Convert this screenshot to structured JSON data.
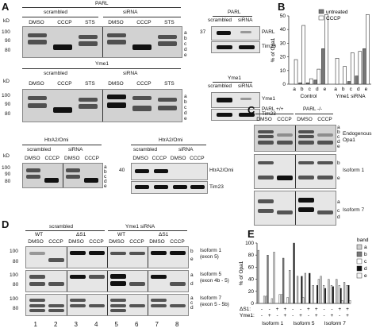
{
  "panels": {
    "a": "A",
    "b": "B",
    "c": "C",
    "d": "D",
    "e": "E"
  },
  "mw": {
    "kd": "kD",
    "m100": "100",
    "m90": "90",
    "m80": "80",
    "m40": "40",
    "m37": "37"
  },
  "treat": {
    "dmso": "DMSO",
    "cccp": "CCCP",
    "sts": "STS",
    "scrambled": "scrambled",
    "sirna": "siRNA"
  },
  "bands": {
    "a": "a",
    "b": "b",
    "c": "c",
    "d": "d",
    "e": "e"
  },
  "panelA": {
    "parl_title": "PARL",
    "yme1_title": "Yme1",
    "htra2_title": "HtrA2/Omi",
    "parl_blot": "PARL",
    "tim23": "Tim23",
    "yme1_blot": "Yme1",
    "htra2_blot": "HtrA2/Omi"
  },
  "panelB": {
    "ylabel": "% of Opa1",
    "legend_untreated": "untreated",
    "legend_cccp": "CCCP",
    "group_control": "Control",
    "group_yme1": "Yme1 siRNA",
    "color_untreated": "#777777",
    "color_cccp": "#ffffff"
  },
  "panelC": {
    "parl_wt": "PARL +/+",
    "parl_ko": "PARL -/-",
    "endogenous": "Endogenous",
    "opa1": "Opa1",
    "isoform1": "Isoform 1",
    "isoform7": "Isoform 7"
  },
  "panelD": {
    "scrambled": "scrambled",
    "yme1_sirna": "Yme1 siRNA",
    "wt": "WT",
    "ds1": "ΔS1",
    "iso1": "Isoform 1",
    "iso1_exon": "(exon 5)",
    "iso5": "Isoform 5",
    "iso5_exon": "(exon 4b - 5)",
    "iso7": "Isoform 7",
    "iso7_exon": "(exon 5 - 5b)",
    "lanes": [
      "1",
      "2",
      "3",
      "4",
      "5",
      "6",
      "7",
      "8"
    ]
  },
  "panelE": {
    "ylabel": "% of Opa1",
    "legend_title": "band",
    "ds1": "ΔS1:",
    "yme1": "Yme1:",
    "iso1": "Isoform 1",
    "iso5": "Isoform 5",
    "iso7": "Isoform 7",
    "plus": "+",
    "minus": "-"
  },
  "chart_data": [
    {
      "type": "bar",
      "ylabel": "% of Opa1",
      "ylim": [
        0,
        50
      ],
      "yticks": [
        0,
        10,
        20,
        30,
        40,
        50
      ],
      "categories": [
        "a",
        "b",
        "c",
        "d",
        "e",
        "a",
        "b",
        "c",
        "d",
        "e"
      ],
      "groups": [
        "Control",
        "Yme1 siRNA"
      ],
      "series": [
        {
          "name": "untreated",
          "values": [
            0,
            1,
            1,
            3,
            26,
            0,
            0,
            2,
            6,
            26
          ]
        },
        {
          "name": "CCCP",
          "values": [
            18,
            43,
            4,
            11,
            51,
            19,
            13,
            23,
            24,
            51
          ]
        }
      ],
      "legend": "top-right"
    },
    {
      "type": "bar",
      "ylabel": "% of Opa1",
      "ylim": [
        0,
        100
      ],
      "yticks": [
        0,
        20,
        40,
        60,
        80,
        100
      ],
      "categories": [
        "Isoform 1",
        "Isoform 5",
        "Isoform 7"
      ],
      "series": [
        {
          "name": "a",
          "values": [
            [
              88,
              12,
              85,
              15
            ],
            [
              55,
              45,
              50,
              30
            ],
            [
              45,
              40,
              40,
              35
            ]
          ]
        },
        {
          "name": "b",
          "values": [
            [
              0,
              80,
              0,
              75
            ],
            [
              0,
              0,
              0,
              0
            ],
            [
              0,
              0,
              0,
              0
            ]
          ]
        },
        {
          "name": "c",
          "values": [
            [
              0,
              0,
              0,
              0
            ],
            [
              0,
              0,
              0,
              0
            ],
            [
              30,
              30,
              30,
              30
            ]
          ]
        },
        {
          "name": "d",
          "values": [
            [
              0,
              0,
              0,
              0
            ],
            [
              100,
              45,
              50,
              30
            ],
            [
              25,
              28,
              25,
              30
            ]
          ]
        },
        {
          "name": "e",
          "values": [
            [
              12,
              8,
              15,
              10
            ],
            [
              0,
              10,
              0,
              40
            ],
            [
              0,
              0,
              5,
              5
            ]
          ]
        }
      ],
      "conditions": {
        "ds1": [
          "-",
          "-",
          "+",
          "+"
        ],
        "yme1": [
          "-",
          "+",
          "-",
          "+"
        ]
      },
      "legend": "right"
    }
  ]
}
